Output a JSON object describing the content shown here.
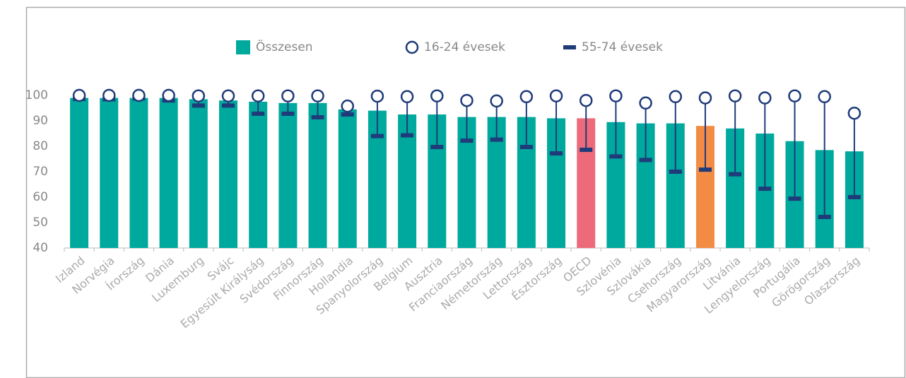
{
  "chart_data": {
    "type": "bar",
    "categories": [
      "Izland",
      "Norvégia",
      "Írország",
      "Dánia",
      "Luxemburg",
      "Svájc",
      "Egyesült Királyság",
      "Svédország",
      "Finnország",
      "Hollandia",
      "Spanyolország",
      "Belgium",
      "Ausztria",
      "Franciaország",
      "Németország",
      "Lettország",
      "Észtország",
      "OECD",
      "Szlovénia",
      "Szlovákia",
      "Csehország",
      "Magyarország",
      "Litvánia",
      "Lengyelország",
      "Portugália",
      "Görögország",
      "Olaszország"
    ],
    "series": [
      {
        "name": "Összesen",
        "type": "bar",
        "color": "#00a99d",
        "colors": [
          "#00a99d",
          "#00a99d",
          "#00a99d",
          "#00a99d",
          "#00a99d",
          "#00a99d",
          "#00a99d",
          "#00a99d",
          "#00a99d",
          "#00a99d",
          "#00a99d",
          "#00a99d",
          "#00a99d",
          "#00a99d",
          "#00a99d",
          "#00a99d",
          "#00a99d",
          "#ed6a7a",
          "#00a99d",
          "#00a99d",
          "#00a99d",
          "#f28c45",
          "#00a99d",
          "#00a99d",
          "#00a99d",
          "#00a99d",
          "#00a99d"
        ],
        "values": [
          99,
          99,
          99,
          99,
          98.5,
          98,
          97.5,
          97,
          97,
          94.5,
          94,
          92.5,
          92.5,
          91.5,
          91.5,
          91.5,
          91,
          91,
          89.5,
          89,
          89,
          88,
          87,
          85,
          82,
          78.5,
          78
        ]
      },
      {
        "name": "16-24 évesek",
        "type": "circle",
        "color": "#1f3b7a",
        "values": [
          100,
          100,
          100,
          100,
          99.8,
          99.8,
          99.8,
          99.8,
          99.8,
          95.8,
          99.7,
          99.5,
          99.8,
          98,
          97.8,
          99.5,
          99.8,
          98,
          99.8,
          97,
          99.5,
          99,
          99.8,
          99,
          99.8,
          99.5,
          93
        ]
      },
      {
        "name": "55-74 évesek",
        "type": "dash",
        "color": "#1f3b7a",
        "values": [
          98.6,
          98.5,
          98.8,
          98,
          96,
          96,
          92.8,
          92.8,
          91.4,
          92.5,
          84,
          84.3,
          79.7,
          82.2,
          82.6,
          79.7,
          77.2,
          78.6,
          76,
          74.6,
          70,
          70.8,
          69,
          63.3,
          59.4,
          52.2,
          60
        ]
      }
    ],
    "ylim": [
      40,
      100
    ],
    "yticks": [
      40,
      50,
      60,
      70,
      80,
      90,
      100
    ],
    "grid": false
  }
}
